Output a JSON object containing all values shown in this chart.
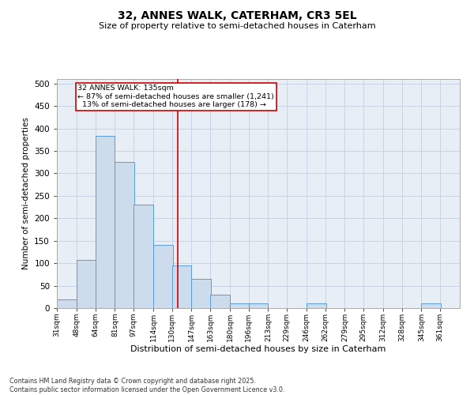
{
  "title_line1": "32, ANNES WALK, CATERHAM, CR3 5EL",
  "title_line2": "Size of property relative to semi-detached houses in Caterham",
  "xlabel": "Distribution of semi-detached houses by size in Caterham",
  "ylabel": "Number of semi-detached properties",
  "footnote": "Contains HM Land Registry data © Crown copyright and database right 2025.\nContains public sector information licensed under the Open Government Licence v3.0.",
  "bin_labels": [
    "31sqm",
    "48sqm",
    "64sqm",
    "81sqm",
    "97sqm",
    "114sqm",
    "130sqm",
    "147sqm",
    "163sqm",
    "180sqm",
    "196sqm",
    "213sqm",
    "229sqm",
    "246sqm",
    "262sqm",
    "279sqm",
    "295sqm",
    "312sqm",
    "328sqm",
    "345sqm",
    "361sqm"
  ],
  "bin_edges": [
    31,
    48,
    64,
    81,
    97,
    114,
    130,
    147,
    163,
    180,
    196,
    213,
    229,
    246,
    262,
    279,
    295,
    312,
    328,
    345,
    361
  ],
  "bin_width": 17,
  "bar_values": [
    20,
    108,
    383,
    325,
    230,
    140,
    95,
    65,
    30,
    10,
    10,
    0,
    0,
    10,
    0,
    0,
    0,
    0,
    0,
    10
  ],
  "bar_facecolor": "#ccdcec",
  "bar_edgecolor": "#5b9bd5",
  "grid_color": "#c8d4e4",
  "background_color": "#e8eef6",
  "vline_x": 135,
  "vline_color": "#cc0000",
  "annotation_text": "32 ANNES WALK: 135sqm\n← 87% of semi-detached houses are smaller (1,241)\n  13% of semi-detached houses are larger (178) →",
  "annotation_box_edgecolor": "#cc0000",
  "annotation_box_facecolor": "#ffffff",
  "ylim": [
    0,
    510
  ],
  "yticks": [
    0,
    50,
    100,
    150,
    200,
    250,
    300,
    350,
    400,
    450,
    500
  ]
}
